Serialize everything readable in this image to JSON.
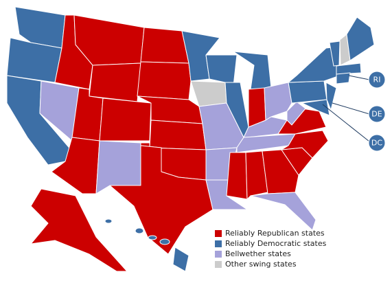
{
  "legend": [
    {
      "label": "Reliably Republican states",
      "color": "#cc0000"
    },
    {
      "label": "Reliably Democratic states",
      "color": "#3d6fa6"
    },
    {
      "label": "Bellwether states",
      "color": "#a5a2da"
    },
    {
      "label": "Other swing states",
      "color": "#cccccc"
    }
  ],
  "callouts": [
    "RI",
    "DE",
    "DC"
  ]
}
